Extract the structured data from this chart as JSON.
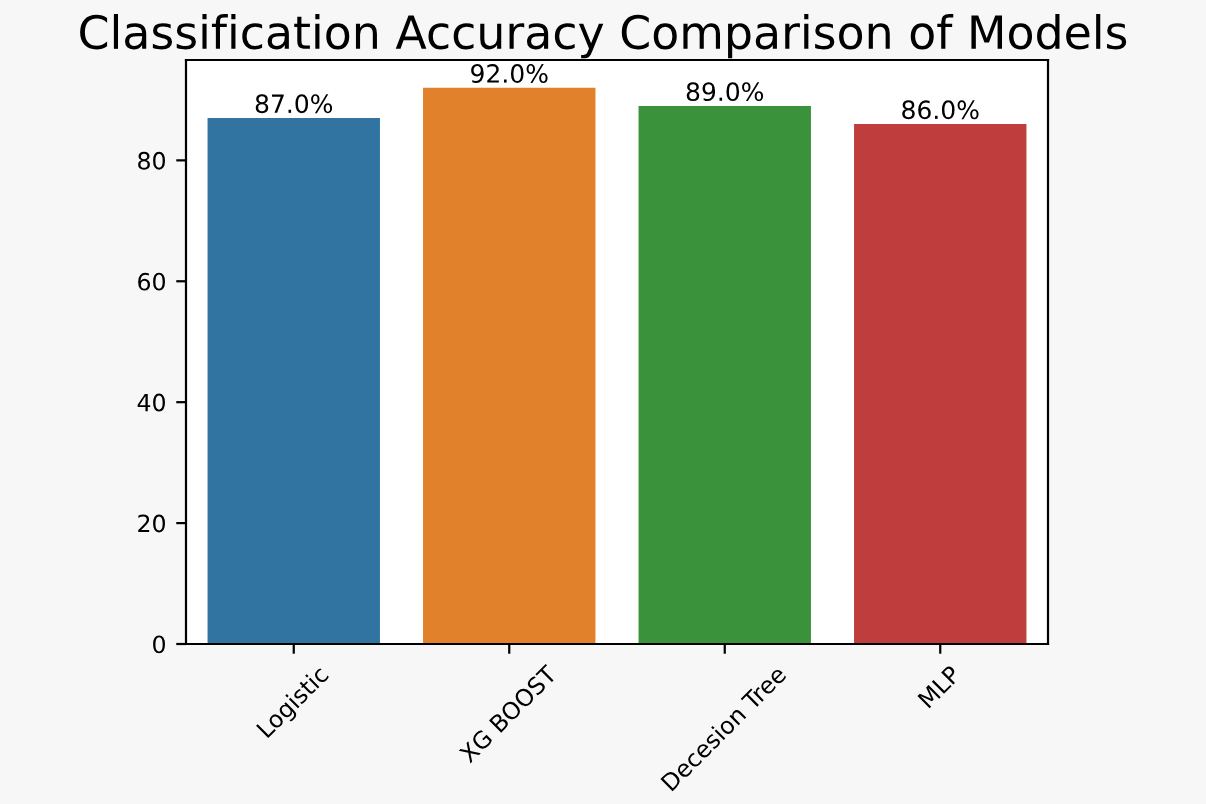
{
  "chart_data": {
    "type": "bar",
    "title": "Classification Accuracy Comparison of Models",
    "categories": [
      "Logistic",
      "XG BOOST",
      "Decesion Tree",
      "MLP"
    ],
    "values": [
      87,
      92,
      89,
      86
    ],
    "value_labels": [
      "87.0%",
      "92.0%",
      "89.0%",
      "86.0%"
    ],
    "colors": [
      "#3274a1",
      "#e1812c",
      "#3a923a",
      "#c03d3e"
    ],
    "ylim": [
      0,
      96.6
    ],
    "yticks": [
      0,
      20,
      40,
      60,
      80
    ],
    "grid": false
  }
}
